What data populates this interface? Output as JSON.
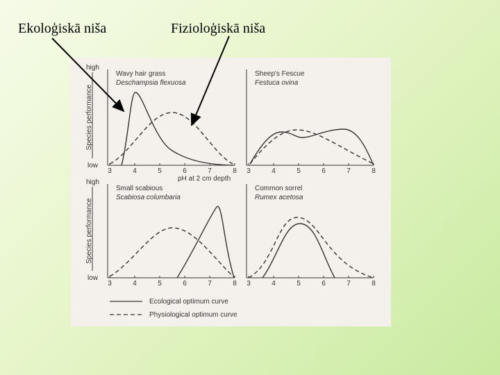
{
  "labels": [
    "Ekoloģiskā niša",
    "Fizioloģiskā niša"
  ],
  "figure": {
    "y_axis": {
      "high": "high",
      "low": "low",
      "title": "Species performance"
    },
    "x_ticks": [
      "3",
      "4",
      "5",
      "6",
      "7",
      "8"
    ],
    "x_title": "pH at 2 cm depth",
    "panels": [
      {
        "name": "Wavy hair grass",
        "latin": "Deschampsia flexuosa"
      },
      {
        "name": "Sheep's Fescue",
        "latin": "Festuca ovina"
      },
      {
        "name": "Small scabious",
        "latin": "Scabiosa columbaria"
      },
      {
        "name": "Common sorrel",
        "latin": "Rumex acetosa"
      }
    ],
    "legend": [
      "Ecological optimum curve",
      "Physiological optimum curve"
    ]
  }
}
